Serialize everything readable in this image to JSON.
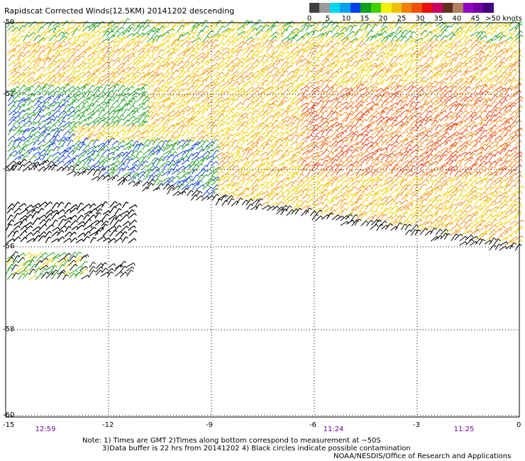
{
  "title": "Rapidscat Corrected Winds(12.5KM) 20141202 descending",
  "legend": {
    "ticks": [
      "0",
      "5",
      "10",
      "15",
      "20",
      "25",
      "30",
      "35",
      "40",
      "45",
      ">50 knots"
    ],
    "colors": [
      "#404040",
      "#9a9a9a",
      "#00d8f0",
      "#00a0f0",
      "#0040e8",
      "#10a020",
      "#40d000",
      "#f0f000",
      "#f0c000",
      "#f08000",
      "#f05000",
      "#e81010",
      "#c80060",
      "#603020",
      "#b08060",
      "#9000c0",
      "#7000a0",
      "#400080"
    ]
  },
  "axes": {
    "lon_labels": [
      "-15",
      "-12",
      "-9",
      "-6",
      "-3",
      "0"
    ],
    "lat_labels": [
      "-50",
      "-52",
      "-54",
      "-56",
      "-58",
      "-60"
    ]
  },
  "time_labels": [
    "12:59",
    "11:24",
    "11:25"
  ],
  "notes": [
    "Note: 1) Times are GMT 2)Times along bottom correspond to measurement at ~50S",
    "3)Data buffer is 22 hrs from 20141202 4) Black circles indicate possible contamination"
  ],
  "credit": "NOAA/NESDIS/Office of Research and Applications",
  "colors": {
    "barb_black": "#000000",
    "barb_blue": "#1040d0",
    "barb_green": "#20a020",
    "barb_yellow": "#f0d000",
    "barb_orange": "#f09020",
    "barb_red": "#e84010"
  }
}
